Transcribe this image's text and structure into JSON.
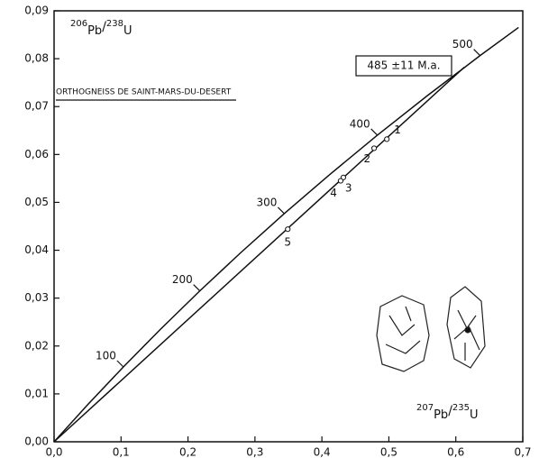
{
  "chart_data": {
    "type": "concordia",
    "title": "ORTHOGNEISS DE SAINT-MARS-DU-DESERT",
    "annotation": "485 ±11 M.a.",
    "y_label": {
      "num_mass": "206",
      "num_el": "Pb",
      "den_mass": "238",
      "den_el": "U"
    },
    "x_label": {
      "num_mass": "207",
      "num_el": "Pb",
      "den_mass": "235",
      "den_el": "U"
    },
    "xlim": [
      0,
      0.7
    ],
    "ylim": [
      0,
      0.09
    ],
    "xticks": [
      {
        "value": 0,
        "label": "0,0"
      },
      {
        "value": 0.1,
        "label": "0,1"
      },
      {
        "value": 0.2,
        "label": "0,2"
      },
      {
        "value": 0.3,
        "label": "0,3"
      },
      {
        "value": 0.4,
        "label": "0,4"
      },
      {
        "value": 0.5,
        "label": "0,5"
      },
      {
        "value": 0.6,
        "label": "0,6"
      },
      {
        "value": 0.7,
        "label": "0,7"
      }
    ],
    "yticks": [
      {
        "value": 0,
        "label": "0,00"
      },
      {
        "value": 0.01,
        "label": "0,01"
      },
      {
        "value": 0.02,
        "label": "0,02"
      },
      {
        "value": 0.03,
        "label": "0,03"
      },
      {
        "value": 0.04,
        "label": "0,04"
      },
      {
        "value": 0.05,
        "label": "0,05"
      },
      {
        "value": 0.06,
        "label": "0,06"
      },
      {
        "value": 0.07,
        "label": "0,07"
      },
      {
        "value": 0.08,
        "label": "0,08"
      },
      {
        "value": 0.09,
        "label": "0,09"
      }
    ],
    "concordia": {
      "color": "#111111",
      "x": [
        0,
        0.05048,
        0.1035,
        0.1592,
        0.2177,
        0.27916,
        0.34374,
        0.41157,
        0.48282,
        0.55766,
        0.63627,
        0.6937
      ],
      "values": [
        0,
        0.007786,
        0.01563,
        0.02354,
        0.03151,
        0.03954,
        0.04764,
        0.0558,
        0.06402,
        0.0723,
        0.08065,
        0.08653
      ]
    },
    "age_marks": {
      "labels": [
        "100",
        "200",
        "300",
        "400",
        "500"
      ],
      "x": [
        0.1035,
        0.2177,
        0.34374,
        0.48282,
        0.63627
      ],
      "values": [
        0.01563,
        0.03151,
        0.04764,
        0.06402,
        0.08065
      ]
    },
    "discordia": {
      "color": "#111111",
      "x": [
        0,
        0.6127
      ],
      "values": [
        0,
        0.07823
      ]
    },
    "points": {
      "labels": [
        "1",
        "2",
        "3",
        "4",
        "5"
      ],
      "x": [
        0.497,
        0.478,
        0.432,
        0.428,
        0.349
      ],
      "values": [
        0.0632,
        0.0613,
        0.0552,
        0.0545,
        0.0444
      ]
    }
  }
}
